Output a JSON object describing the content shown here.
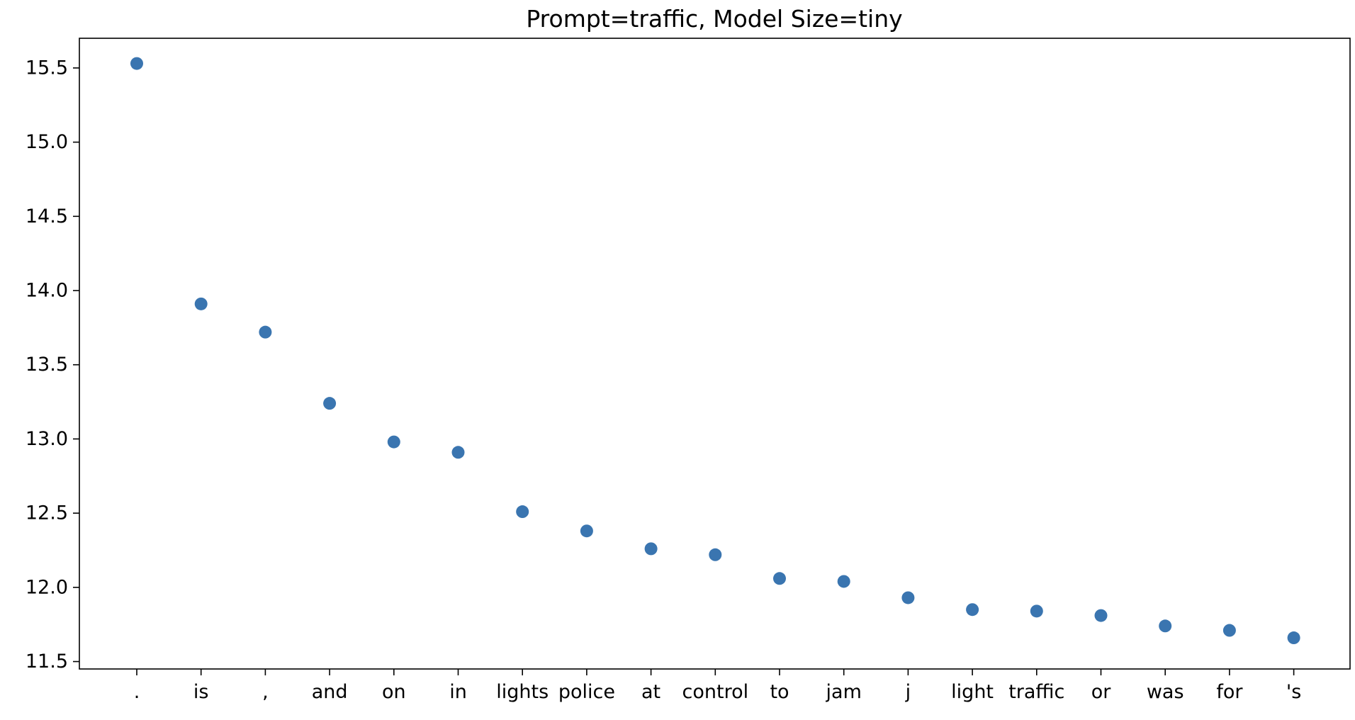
{
  "chart_data": {
    "type": "scatter",
    "title": "Prompt=traffic, Model Size=tiny",
    "xlabel": "",
    "ylabel": "",
    "categories": [
      ".",
      "is",
      ",",
      "and",
      "on",
      "in",
      "lights",
      "police",
      "at",
      "control",
      "to",
      "jam",
      "j",
      "light",
      "traffic",
      "or",
      "was",
      "for",
      "'s"
    ],
    "series": [
      {
        "values": [
          15.53,
          13.91,
          13.72,
          13.24,
          12.98,
          12.91,
          12.51,
          12.38,
          12.26,
          12.22,
          12.06,
          12.04,
          11.93,
          11.85,
          11.84,
          11.81,
          11.74,
          11.71,
          11.66
        ]
      }
    ],
    "ylim": [
      11.45,
      15.7
    ],
    "yticks": [
      "11.5",
      "12.0",
      "12.5",
      "13.0",
      "13.5",
      "14.0",
      "14.5",
      "15.0",
      "15.5"
    ],
    "grid": false,
    "legend": "none",
    "marker_color": "#3a75b0"
  }
}
